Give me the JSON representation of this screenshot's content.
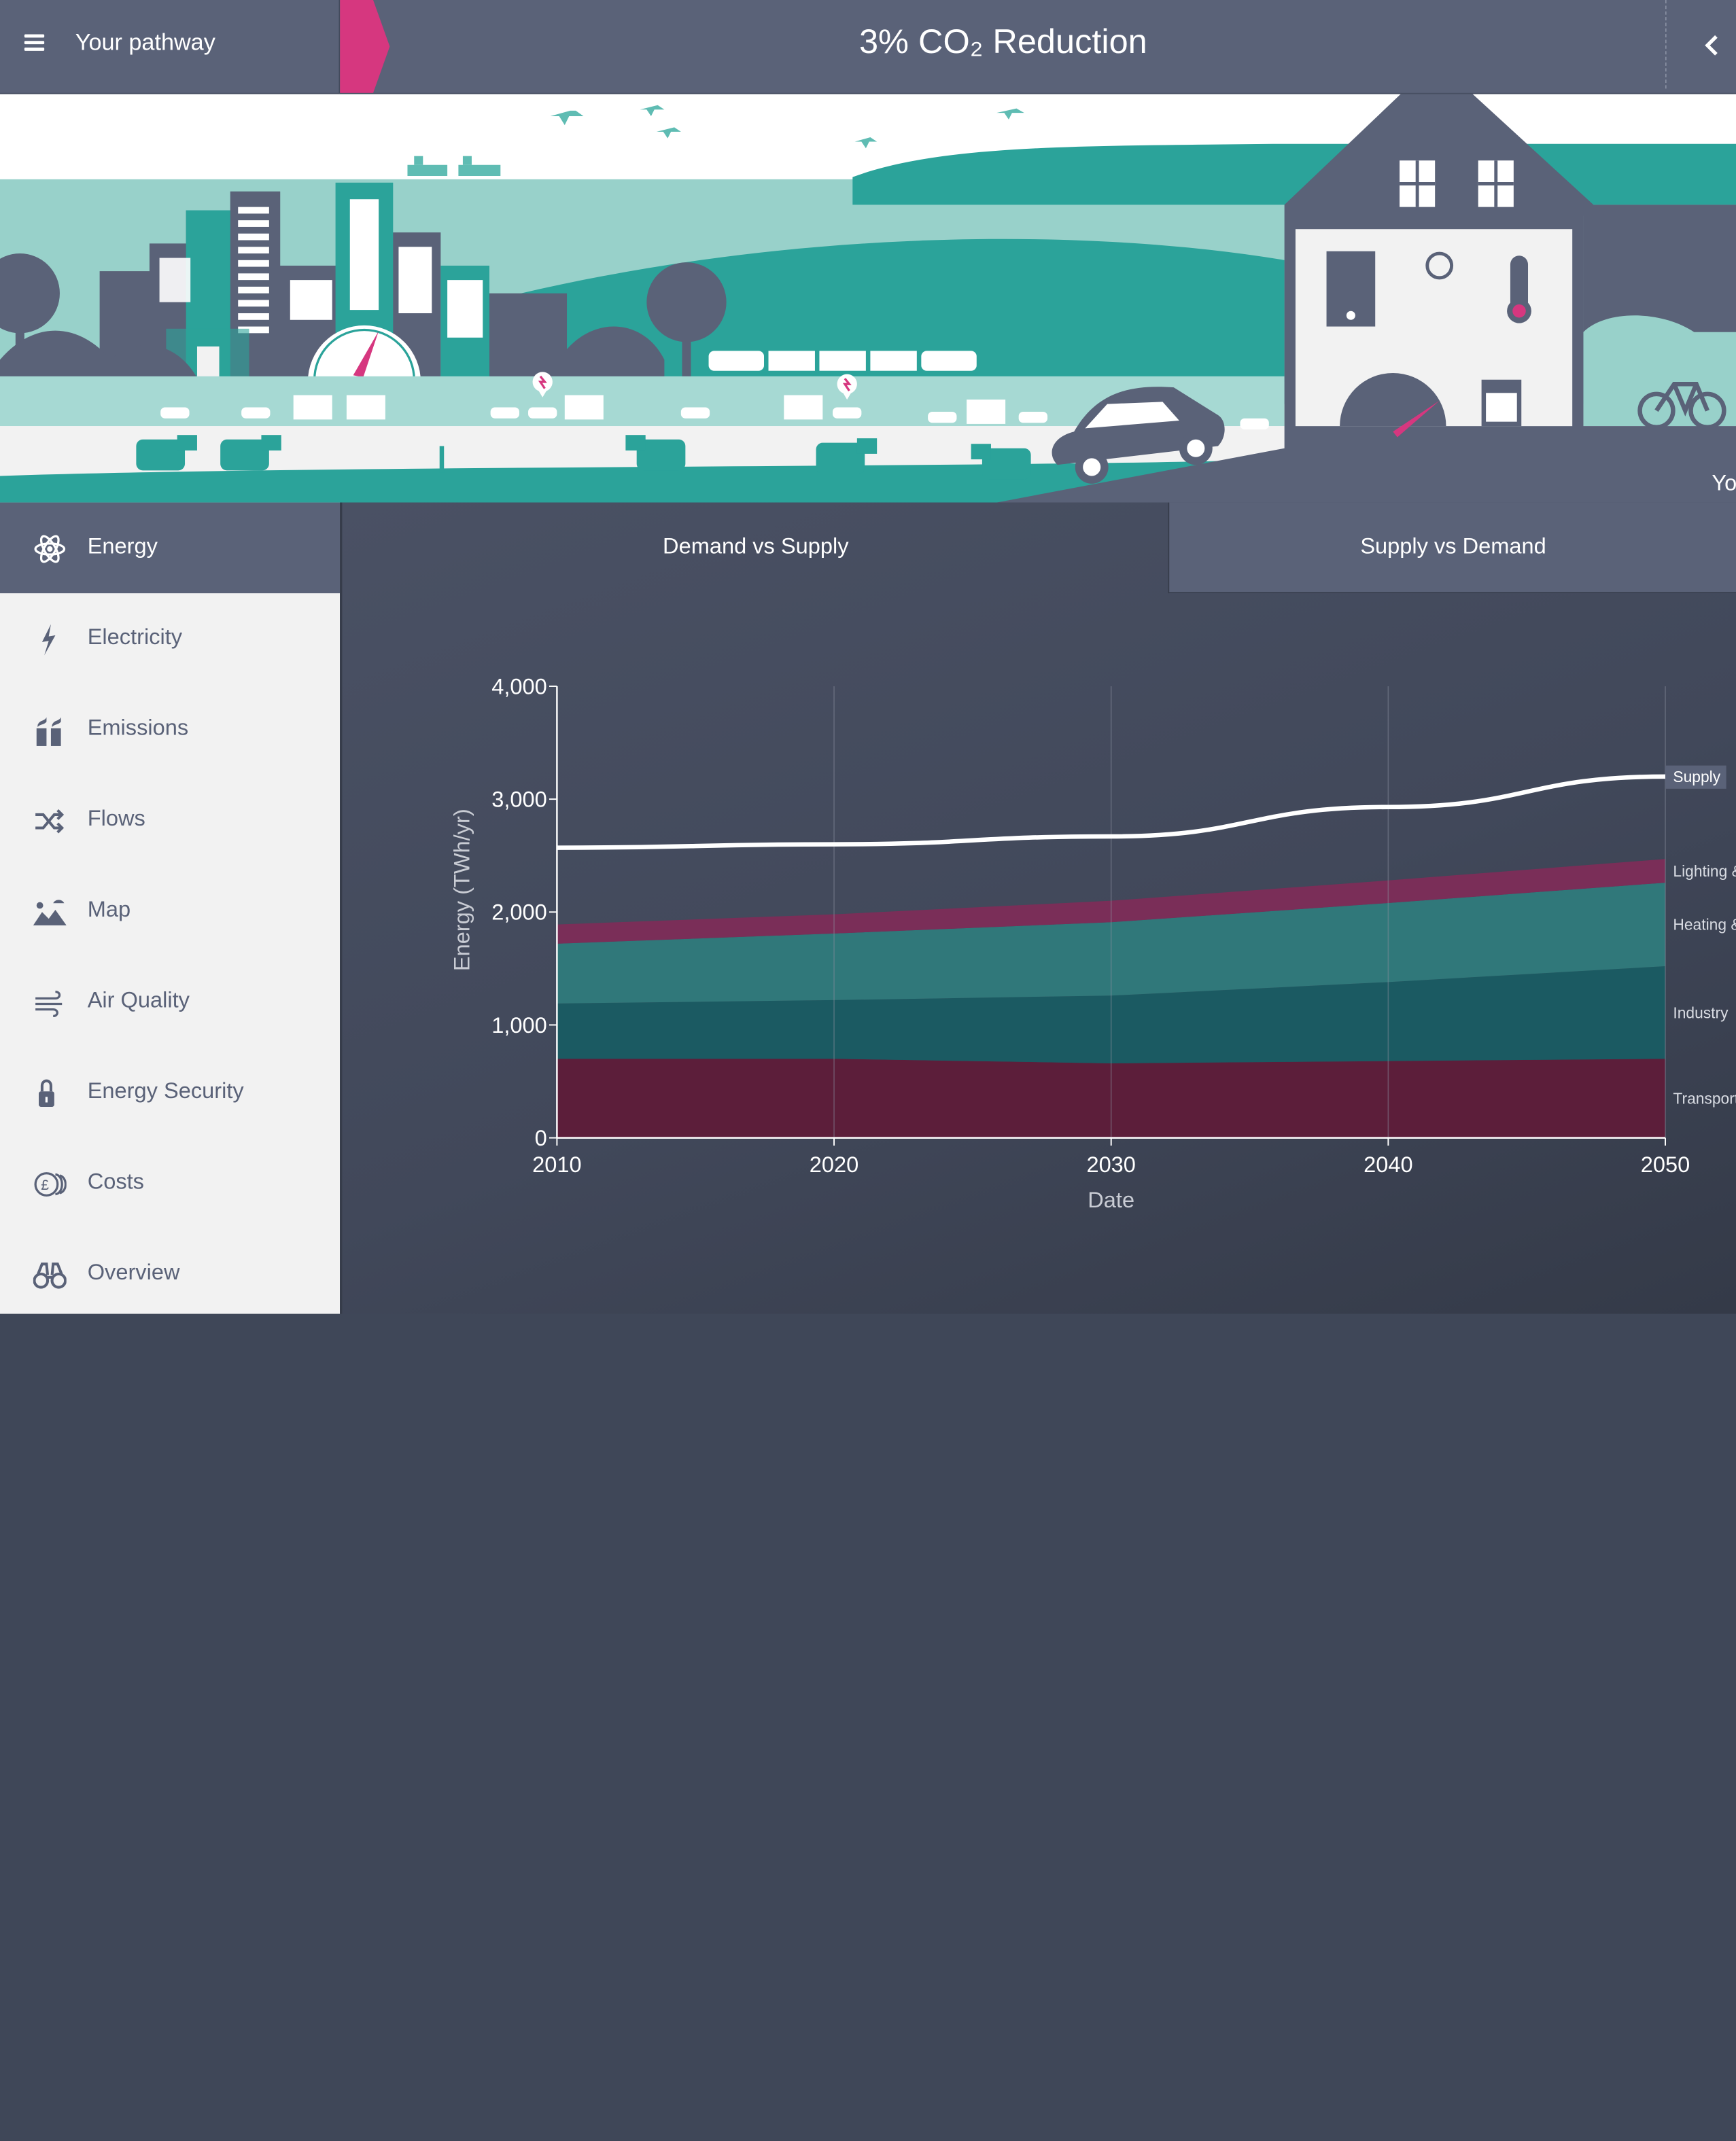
{
  "header": {
    "menu_label": "Your pathway",
    "title": "3% CO₂ Reduction"
  },
  "scene": {
    "corner_text": "Yo"
  },
  "sidebar": {
    "items": [
      {
        "label": "Energy",
        "icon": "atom-icon",
        "active": true
      },
      {
        "label": "Electricity",
        "icon": "lightning-icon"
      },
      {
        "label": "Emissions",
        "icon": "factory-chimney-icon"
      },
      {
        "label": "Flows",
        "icon": "shuffle-icon"
      },
      {
        "label": "Map",
        "icon": "map-landscape-icon"
      },
      {
        "label": "Air Quality",
        "icon": "wind-icon"
      },
      {
        "label": "Energy Security",
        "icon": "padlock-icon"
      },
      {
        "label": "Costs",
        "icon": "coins-icon"
      },
      {
        "label": "Overview",
        "icon": "binoculars-icon"
      }
    ]
  },
  "tabs": [
    {
      "label": "Demand vs Supply",
      "active": true
    },
    {
      "label": "Supply vs Demand",
      "active": false
    }
  ],
  "colors": {
    "header": "#5a6278",
    "accent_pink": "#d6377f",
    "teal": "#2ba39a",
    "supply_line": "#ffffff"
  },
  "chart_data": {
    "type": "area",
    "xlabel": "Date",
    "ylabel": "Energy (TWh/yr)",
    "x": [
      2010,
      2020,
      2030,
      2040,
      2050
    ],
    "xlim": [
      2010,
      2050
    ],
    "ylim": [
      0,
      4000
    ],
    "y_ticks": [
      "0",
      "1,000",
      "2,000",
      "3,000",
      "4,000"
    ],
    "x_ticks": [
      "2010",
      "2020",
      "2030",
      "2040",
      "2050"
    ],
    "grid": "vertical",
    "stacked": true,
    "series": [
      {
        "name": "Transport",
        "values": [
          700,
          700,
          660,
          680,
          700
        ],
        "color": "#5c1e3a"
      },
      {
        "name": "Industry",
        "values": [
          490,
          520,
          600,
          700,
          820
        ],
        "color": "#1b5a62"
      },
      {
        "name": "Heating &",
        "values": [
          530,
          590,
          650,
          700,
          740
        ],
        "color": "#30787a"
      },
      {
        "name": "Lighting &",
        "values": [
          170,
          170,
          190,
          200,
          210
        ],
        "color": "#7a2e58"
      }
    ],
    "line_series": [
      {
        "name": "Supply",
        "values": [
          2570,
          2600,
          2670,
          2930,
          3200
        ],
        "color": "#ffffff"
      }
    ]
  }
}
